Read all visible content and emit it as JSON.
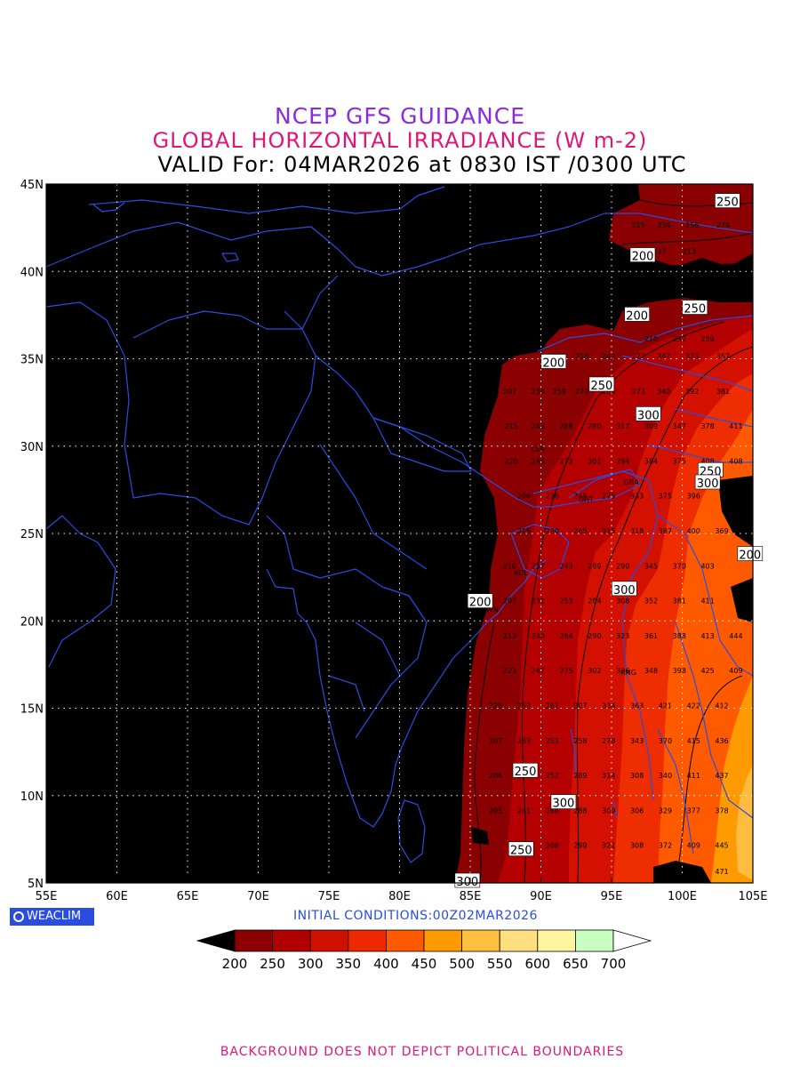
{
  "title": {
    "line1": "NCEP GFS GUIDANCE",
    "line2": "GLOBAL HORIZONTAL IRRADIANCE (W m-2)",
    "line3": "VALID For: 04MAR2026 at 0830 IST /0300 UTC"
  },
  "initial_conditions": "INITIAL  CONDITIONS:00Z02MAR2026",
  "logo_text": "WEACLIM",
  "footer": "BACKGROUND DOES NOT DEPICT POLITICAL BOUNDARIES",
  "colors": {
    "background": "#000000",
    "boundary": "#2a4de0",
    "title1": "#8a2be2",
    "title2": "#e0157a"
  },
  "axes": {
    "lon_ticks": [
      "55E",
      "60E",
      "65E",
      "70E",
      "75E",
      "80E",
      "85E",
      "90E",
      "95E",
      "100E",
      "105E"
    ],
    "lat_ticks": [
      "5N",
      "10N",
      "15N",
      "20N",
      "25N",
      "30N",
      "35N",
      "40N",
      "45N"
    ],
    "lon_range": [
      55,
      105
    ],
    "lat_range": [
      5,
      45
    ],
    "grid": "dotted"
  },
  "colorbar": {
    "labels": [
      "200",
      "250",
      "300",
      "350",
      "400",
      "450",
      "500",
      "550",
      "600",
      "650",
      "700"
    ],
    "colors": [
      "#000000",
      "#8b0000",
      "#b00000",
      "#d01000",
      "#ee2800",
      "#ff5a00",
      "#ff9a00",
      "#ffc040",
      "#ffdf80",
      "#fff4a0",
      "#c8ffc0",
      "#ffffff"
    ]
  },
  "contour_labels": [
    {
      "text": "250",
      "lon": 103.2,
      "lat": 44.0
    },
    {
      "text": "200",
      "lon": 97.2,
      "lat": 40.9
    },
    {
      "text": "200",
      "lon": 96.8,
      "lat": 37.5
    },
    {
      "text": "250",
      "lon": 100.9,
      "lat": 37.9
    },
    {
      "text": "200",
      "lon": 90.9,
      "lat": 34.8
    },
    {
      "text": "250",
      "lon": 94.3,
      "lat": 33.5
    },
    {
      "text": "300",
      "lon": 97.6,
      "lat": 31.8
    },
    {
      "text": "250",
      "lon": 102.0,
      "lat": 28.6
    },
    {
      "text": "300",
      "lon": 101.8,
      "lat": 27.9
    },
    {
      "text": "200",
      "lon": 104.8,
      "lat": 23.8
    },
    {
      "text": "300",
      "lon": 95.9,
      "lat": 21.8
    },
    {
      "text": "200",
      "lon": 85.7,
      "lat": 21.1
    },
    {
      "text": "250",
      "lon": 88.9,
      "lat": 11.4
    },
    {
      "text": "300",
      "lon": 91.6,
      "lat": 9.6
    },
    {
      "text": "250",
      "lon": 88.6,
      "lat": 6.9
    },
    {
      "text": "300",
      "lon": 84.8,
      "lat": 5.1
    }
  ],
  "grid_values": [
    {
      "lat": 41,
      "lon": [
        98.4,
        100.5
      ],
      "v": [
        "237",
        "213"
      ]
    },
    {
      "lat": 42.5,
      "lon": [
        96.9,
        98.7,
        100.7,
        102.9
      ],
      "v": [
        "215",
        "234",
        "256",
        "274"
      ]
    },
    {
      "lat": 36,
      "lon": [
        97.8,
        99.8,
        101.8
      ],
      "v": [
        "210",
        "232",
        "259"
      ]
    },
    {
      "lat": 35,
      "lon": [
        91.3,
        92.9,
        94.8,
        96.9,
        98.7,
        100.7,
        102.9
      ],
      "v": [
        "202",
        "218",
        "242",
        "277",
        "347",
        "373",
        "357"
      ]
    },
    {
      "lat": 33,
      "lon": [
        87.8,
        89.8,
        91.3,
        92.9,
        94.8,
        96.9,
        98.7,
        100.7,
        102.9
      ],
      "v": [
        "207",
        "234",
        "259",
        "272",
        "284",
        "273",
        "340",
        "392",
        "381"
      ]
    },
    {
      "lat": 31,
      "lon": [
        87.9,
        89.8,
        91.8,
        93.8,
        95.8,
        97.8,
        99.8,
        101.8,
        103.8
      ],
      "v": [
        "215",
        "243",
        "268",
        "280",
        "317",
        "309",
        "347",
        "378",
        "411"
      ]
    },
    {
      "lat": 29,
      "lon": [
        87.9,
        89.8,
        91.8,
        93.8,
        95.8,
        97.8,
        99.8,
        101.8,
        103.8
      ],
      "v": [
        "220",
        "245",
        "273",
        "301",
        "294",
        "384",
        "375",
        "408",
        "408"
      ]
    },
    {
      "lat": 27,
      "lon": [
        88.8,
        90.8,
        92.8,
        94.8,
        96.8,
        98.8,
        100.8
      ],
      "v": [
        "206",
        "236",
        "249",
        "275",
        "333",
        "375",
        "396"
      ]
    },
    {
      "lat": 25,
      "lon": [
        88.8,
        90.8,
        92.8,
        94.8,
        96.8,
        98.8,
        100.8,
        102.8
      ],
      "v": [
        "215",
        "230",
        "265",
        "315",
        "318",
        "387",
        "400",
        "369"
      ]
    },
    {
      "lat": 23,
      "lon": [
        87.8,
        89.8,
        91.8,
        93.8,
        95.8,
        97.8,
        99.8,
        101.8
      ],
      "v": [
        "210",
        "237",
        "243",
        "289",
        "290",
        "345",
        "370",
        "403"
      ]
    },
    {
      "lat": 21,
      "lon": [
        87.8,
        89.8,
        91.8,
        93.8,
        95.8,
        97.8,
        99.8,
        101.8
      ],
      "v": [
        "207",
        "231",
        "253",
        "284",
        "308",
        "352",
        "381",
        "411"
      ]
    },
    {
      "lat": 19,
      "lon": [
        87.8,
        89.8,
        91.8,
        93.8,
        95.8,
        97.8,
        99.8,
        101.8,
        103.8
      ],
      "v": [
        "213",
        "240",
        "264",
        "290",
        "323",
        "361",
        "388",
        "413",
        "444"
      ]
    },
    {
      "lat": 17,
      "lon": [
        87.8,
        89.8,
        91.8,
        93.8,
        95.8,
        97.8,
        99.8,
        101.8,
        103.8
      ],
      "v": [
        "221",
        "247",
        "275",
        "302",
        "326",
        "348",
        "398",
        "425",
        "409"
      ]
    },
    {
      "lat": 15,
      "lon": [
        86.8,
        88.8,
        90.8,
        92.8,
        94.8,
        96.8,
        98.8,
        100.8,
        102.8
      ],
      "v": [
        "228",
        "253",
        "261",
        "307",
        "334",
        "363",
        "421",
        "422",
        "412"
      ]
    },
    {
      "lat": 13,
      "lon": [
        86.8,
        88.8,
        90.8,
        92.8,
        94.8,
        96.8,
        98.8,
        100.8,
        102.8
      ],
      "v": [
        "207",
        "233",
        "251",
        "258",
        "278",
        "343",
        "370",
        "415",
        "436"
      ]
    },
    {
      "lat": 11,
      "lon": [
        86.8,
        88.8,
        90.8,
        92.8,
        94.8,
        96.8,
        98.8,
        100.8,
        102.8
      ],
      "v": [
        "206",
        "231",
        "257",
        "289",
        "314",
        "308",
        "340",
        "411",
        "437"
      ]
    },
    {
      "lat": 9,
      "lon": [
        86.8,
        88.8,
        90.8,
        92.8,
        94.8,
        96.8,
        98.8,
        100.8,
        102.8
      ],
      "v": [
        "205",
        "241",
        "266",
        "288",
        "309",
        "306",
        "329",
        "377",
        "378"
      ]
    },
    {
      "lat": 7,
      "lon": [
        88.8,
        90.8,
        92.8,
        94.8,
        96.8,
        98.8,
        100.8,
        102.8
      ],
      "v": [
        "239",
        "268",
        "299",
        "321",
        "308",
        "372",
        "409",
        "445"
      ]
    },
    {
      "lat": 5.5,
      "lon": [
        102.8
      ],
      "v": [
        "471"
      ]
    }
  ],
  "station_labels": [
    {
      "text": "LSA",
      "lon": 89.8,
      "lat": 29.7
    },
    {
      "text": "GHT",
      "lon": 93.2,
      "lat": 26.8
    },
    {
      "text": "GBA",
      "lon": 96.4,
      "lat": 27.8
    },
    {
      "text": "KOL",
      "lon": 88.6,
      "lat": 22.6
    },
    {
      "text": "BWN",
      "lon": 86.4,
      "lat": 20.5
    },
    {
      "text": "RNG",
      "lon": 96.2,
      "lat": 16.9
    }
  ]
}
